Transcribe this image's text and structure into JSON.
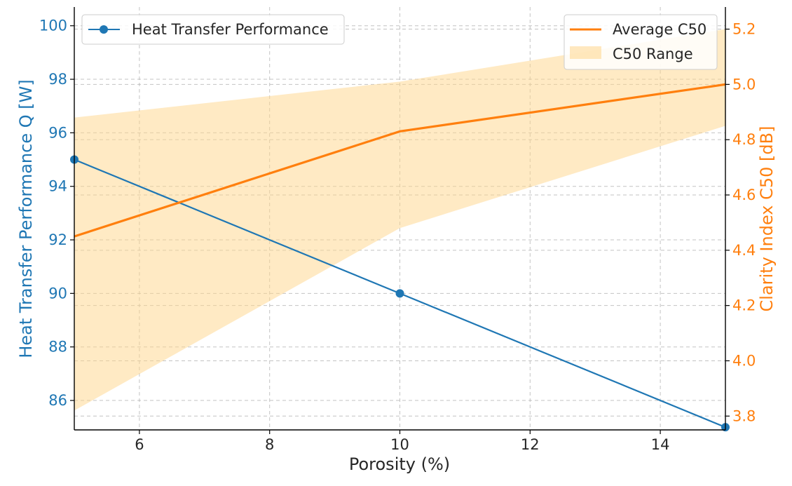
{
  "chart_data": {
    "type": "line",
    "title": "",
    "xlabel": "Porosity (%)",
    "x": [
      5,
      10,
      15
    ],
    "xlim": [
      5,
      15
    ],
    "xticks": [
      6,
      8,
      10,
      12,
      14
    ],
    "grid": true,
    "left_axis": {
      "label": "Heat Transfer Performance Q [W]",
      "color": "#1f77b4",
      "ylim": [
        84.9,
        100.7
      ],
      "ticks": [
        86,
        88,
        90,
        92,
        94,
        96,
        98,
        100
      ]
    },
    "right_axis": {
      "label": "Clarity Index C50 [dB]",
      "color": "#ff7f0e",
      "ylim": [
        3.75,
        5.28
      ],
      "ticks": [
        3.8,
        4.0,
        4.2,
        4.4,
        4.6,
        4.8,
        5.0,
        5.2
      ]
    },
    "series": [
      {
        "name": "Heat Transfer Performance",
        "axis": "left",
        "kind": "line-marker",
        "color": "#1f77b4",
        "values": [
          95,
          90,
          85
        ]
      },
      {
        "name": "Average C50",
        "axis": "right",
        "kind": "line",
        "color": "#ff7f0e",
        "values": [
          4.45,
          4.83,
          5.0
        ]
      },
      {
        "name": "C50 Range",
        "axis": "right",
        "kind": "band",
        "color": "#ffd68a",
        "lower": [
          3.82,
          4.48,
          4.85
        ],
        "upper": [
          4.88,
          5.01,
          5.2
        ]
      }
    ],
    "legends": [
      {
        "placement": "upper-left",
        "entries": [
          "Heat Transfer Performance"
        ]
      },
      {
        "placement": "upper-right",
        "entries": [
          "Average C50",
          "C50 Range"
        ]
      }
    ]
  }
}
